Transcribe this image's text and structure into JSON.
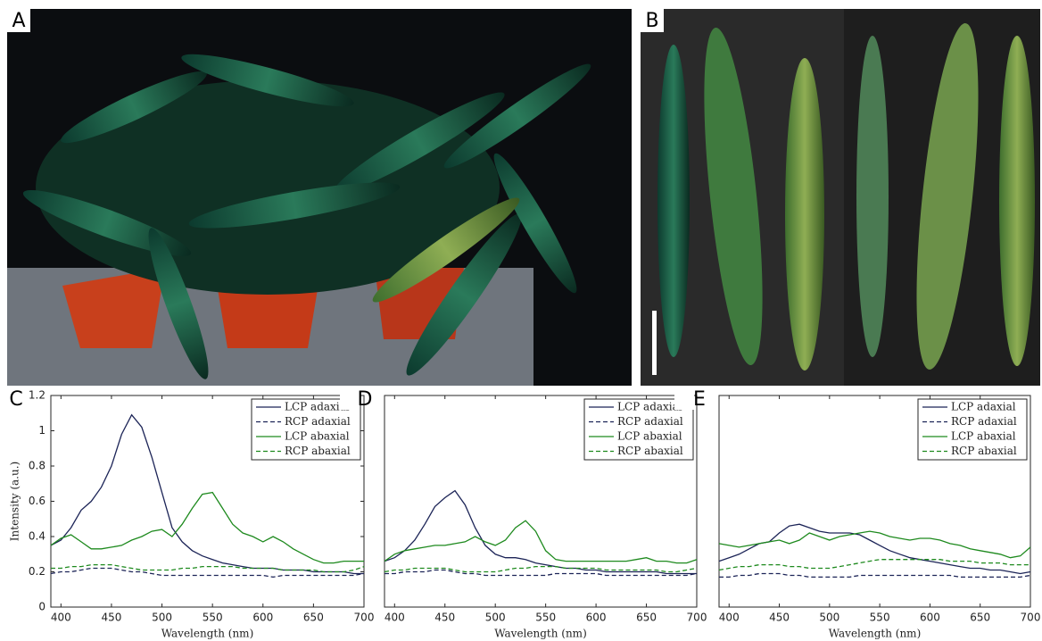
{
  "photo_panels": [
    {
      "label": "A"
    },
    {
      "label": "B"
    }
  ],
  "chart_data": [
    {
      "type": "line",
      "panel_label": "C",
      "xlabel": "Wavelength (nm)",
      "ylabel": "Intensity (a.u.)",
      "xlim": [
        390,
        700
      ],
      "xticks": [
        400,
        450,
        500,
        550,
        600,
        650,
        700
      ],
      "ylim": [
        0,
        1.2
      ],
      "yticks": [
        0,
        0.2,
        0.4,
        0.6,
        0.8,
        1,
        1.2
      ],
      "x": [
        390,
        400,
        410,
        420,
        430,
        440,
        450,
        460,
        470,
        480,
        490,
        500,
        510,
        520,
        530,
        540,
        550,
        560,
        570,
        580,
        590,
        600,
        610,
        620,
        630,
        640,
        650,
        660,
        670,
        680,
        690,
        700
      ],
      "series": [
        {
          "name": "LCP adaxial",
          "color": "#1c2457",
          "dashed": false,
          "values": [
            0.35,
            0.38,
            0.45,
            0.55,
            0.6,
            0.68,
            0.8,
            0.98,
            1.09,
            1.02,
            0.85,
            0.65,
            0.45,
            0.37,
            0.32,
            0.29,
            0.27,
            0.25,
            0.24,
            0.23,
            0.22,
            0.22,
            0.22,
            0.21,
            0.21,
            0.21,
            0.2,
            0.2,
            0.2,
            0.2,
            0.19,
            0.19
          ]
        },
        {
          "name": "RCP adaxial",
          "color": "#1c2457",
          "dashed": true,
          "values": [
            0.19,
            0.2,
            0.2,
            0.21,
            0.22,
            0.22,
            0.22,
            0.21,
            0.2,
            0.2,
            0.19,
            0.18,
            0.18,
            0.18,
            0.18,
            0.18,
            0.18,
            0.18,
            0.18,
            0.18,
            0.18,
            0.18,
            0.17,
            0.18,
            0.18,
            0.18,
            0.18,
            0.18,
            0.18,
            0.18,
            0.18,
            0.19
          ]
        },
        {
          "name": "LCP abaxial",
          "color": "#1e8a1e",
          "dashed": false,
          "values": [
            0.35,
            0.39,
            0.41,
            0.37,
            0.33,
            0.33,
            0.34,
            0.35,
            0.38,
            0.4,
            0.43,
            0.44,
            0.4,
            0.47,
            0.56,
            0.64,
            0.65,
            0.56,
            0.47,
            0.42,
            0.4,
            0.37,
            0.4,
            0.37,
            0.33,
            0.3,
            0.27,
            0.25,
            0.25,
            0.26,
            0.26,
            0.26
          ]
        },
        {
          "name": "RCP abaxial",
          "color": "#1e8a1e",
          "dashed": true,
          "values": [
            0.22,
            0.22,
            0.23,
            0.23,
            0.24,
            0.24,
            0.24,
            0.23,
            0.22,
            0.21,
            0.21,
            0.21,
            0.21,
            0.22,
            0.22,
            0.23,
            0.23,
            0.23,
            0.23,
            0.22,
            0.22,
            0.22,
            0.22,
            0.21,
            0.21,
            0.21,
            0.21,
            0.2,
            0.2,
            0.2,
            0.21,
            0.23
          ]
        }
      ]
    },
    {
      "type": "line",
      "panel_label": "D",
      "xlabel": "Wavelength (nm)",
      "xlim": [
        390,
        700
      ],
      "xticks": [
        400,
        450,
        500,
        550,
        600,
        650,
        700
      ],
      "ylim": [
        0,
        1.2
      ],
      "x": [
        390,
        400,
        410,
        420,
        430,
        440,
        450,
        460,
        470,
        480,
        490,
        500,
        510,
        520,
        530,
        540,
        550,
        560,
        570,
        580,
        590,
        600,
        610,
        620,
        630,
        640,
        650,
        660,
        670,
        680,
        690,
        700
      ],
      "series": [
        {
          "name": "LCP adaxial",
          "color": "#1c2457",
          "dashed": false,
          "values": [
            0.26,
            0.28,
            0.32,
            0.38,
            0.47,
            0.57,
            0.62,
            0.66,
            0.58,
            0.45,
            0.35,
            0.3,
            0.28,
            0.28,
            0.27,
            0.25,
            0.24,
            0.23,
            0.22,
            0.22,
            0.21,
            0.21,
            0.2,
            0.2,
            0.2,
            0.2,
            0.2,
            0.2,
            0.19,
            0.19,
            0.19,
            0.19
          ]
        },
        {
          "name": "RCP adaxial",
          "color": "#1c2457",
          "dashed": true,
          "values": [
            0.19,
            0.19,
            0.2,
            0.2,
            0.2,
            0.21,
            0.21,
            0.2,
            0.19,
            0.19,
            0.18,
            0.18,
            0.18,
            0.18,
            0.18,
            0.18,
            0.18,
            0.19,
            0.19,
            0.19,
            0.19,
            0.19,
            0.18,
            0.18,
            0.18,
            0.18,
            0.18,
            0.18,
            0.18,
            0.18,
            0.18,
            0.19
          ]
        },
        {
          "name": "LCP abaxial",
          "color": "#1e8a1e",
          "dashed": false,
          "values": [
            0.26,
            0.3,
            0.32,
            0.33,
            0.34,
            0.35,
            0.35,
            0.36,
            0.37,
            0.4,
            0.37,
            0.35,
            0.38,
            0.45,
            0.49,
            0.43,
            0.32,
            0.27,
            0.26,
            0.26,
            0.26,
            0.26,
            0.26,
            0.26,
            0.26,
            0.27,
            0.28,
            0.26,
            0.26,
            0.25,
            0.25,
            0.27
          ]
        },
        {
          "name": "RCP abaxial",
          "color": "#1e8a1e",
          "dashed": true,
          "values": [
            0.2,
            0.21,
            0.21,
            0.22,
            0.22,
            0.22,
            0.22,
            0.21,
            0.2,
            0.2,
            0.2,
            0.2,
            0.21,
            0.22,
            0.22,
            0.23,
            0.23,
            0.23,
            0.22,
            0.22,
            0.22,
            0.22,
            0.21,
            0.21,
            0.21,
            0.21,
            0.21,
            0.21,
            0.2,
            0.2,
            0.21,
            0.22
          ]
        }
      ]
    },
    {
      "type": "line",
      "panel_label": "E",
      "xlabel": "Wavelength (nm)",
      "xlim": [
        390,
        700
      ],
      "xticks": [
        400,
        450,
        500,
        550,
        600,
        650,
        700
      ],
      "ylim": [
        0,
        1.2
      ],
      "x": [
        390,
        400,
        410,
        420,
        430,
        440,
        450,
        460,
        470,
        480,
        490,
        500,
        510,
        520,
        530,
        540,
        550,
        560,
        570,
        580,
        590,
        600,
        610,
        620,
        630,
        640,
        650,
        660,
        670,
        680,
        690,
        700
      ],
      "series": [
        {
          "name": "LCP adaxial",
          "color": "#1c2457",
          "dashed": false,
          "values": [
            0.26,
            0.28,
            0.3,
            0.33,
            0.36,
            0.37,
            0.42,
            0.46,
            0.47,
            0.45,
            0.43,
            0.42,
            0.42,
            0.42,
            0.41,
            0.38,
            0.35,
            0.32,
            0.3,
            0.28,
            0.27,
            0.26,
            0.25,
            0.24,
            0.23,
            0.22,
            0.22,
            0.21,
            0.21,
            0.2,
            0.19,
            0.2
          ]
        },
        {
          "name": "RCP adaxial",
          "color": "#1c2457",
          "dashed": true,
          "values": [
            0.17,
            0.17,
            0.18,
            0.18,
            0.19,
            0.19,
            0.19,
            0.18,
            0.18,
            0.17,
            0.17,
            0.17,
            0.17,
            0.17,
            0.18,
            0.18,
            0.18,
            0.18,
            0.18,
            0.18,
            0.18,
            0.18,
            0.18,
            0.18,
            0.17,
            0.17,
            0.17,
            0.17,
            0.17,
            0.17,
            0.17,
            0.18
          ]
        },
        {
          "name": "LCP abaxial",
          "color": "#1e8a1e",
          "dashed": false,
          "values": [
            0.36,
            0.35,
            0.34,
            0.35,
            0.36,
            0.37,
            0.38,
            0.36,
            0.38,
            0.42,
            0.4,
            0.38,
            0.4,
            0.41,
            0.42,
            0.43,
            0.42,
            0.4,
            0.39,
            0.38,
            0.39,
            0.39,
            0.38,
            0.36,
            0.35,
            0.33,
            0.32,
            0.31,
            0.3,
            0.28,
            0.29,
            0.34
          ]
        },
        {
          "name": "RCP abaxial",
          "color": "#1e8a1e",
          "dashed": true,
          "values": [
            0.21,
            0.22,
            0.23,
            0.23,
            0.24,
            0.24,
            0.24,
            0.23,
            0.23,
            0.22,
            0.22,
            0.22,
            0.23,
            0.24,
            0.25,
            0.26,
            0.27,
            0.27,
            0.27,
            0.27,
            0.27,
            0.27,
            0.27,
            0.26,
            0.26,
            0.26,
            0.25,
            0.25,
            0.25,
            0.24,
            0.24,
            0.24
          ]
        }
      ]
    }
  ]
}
